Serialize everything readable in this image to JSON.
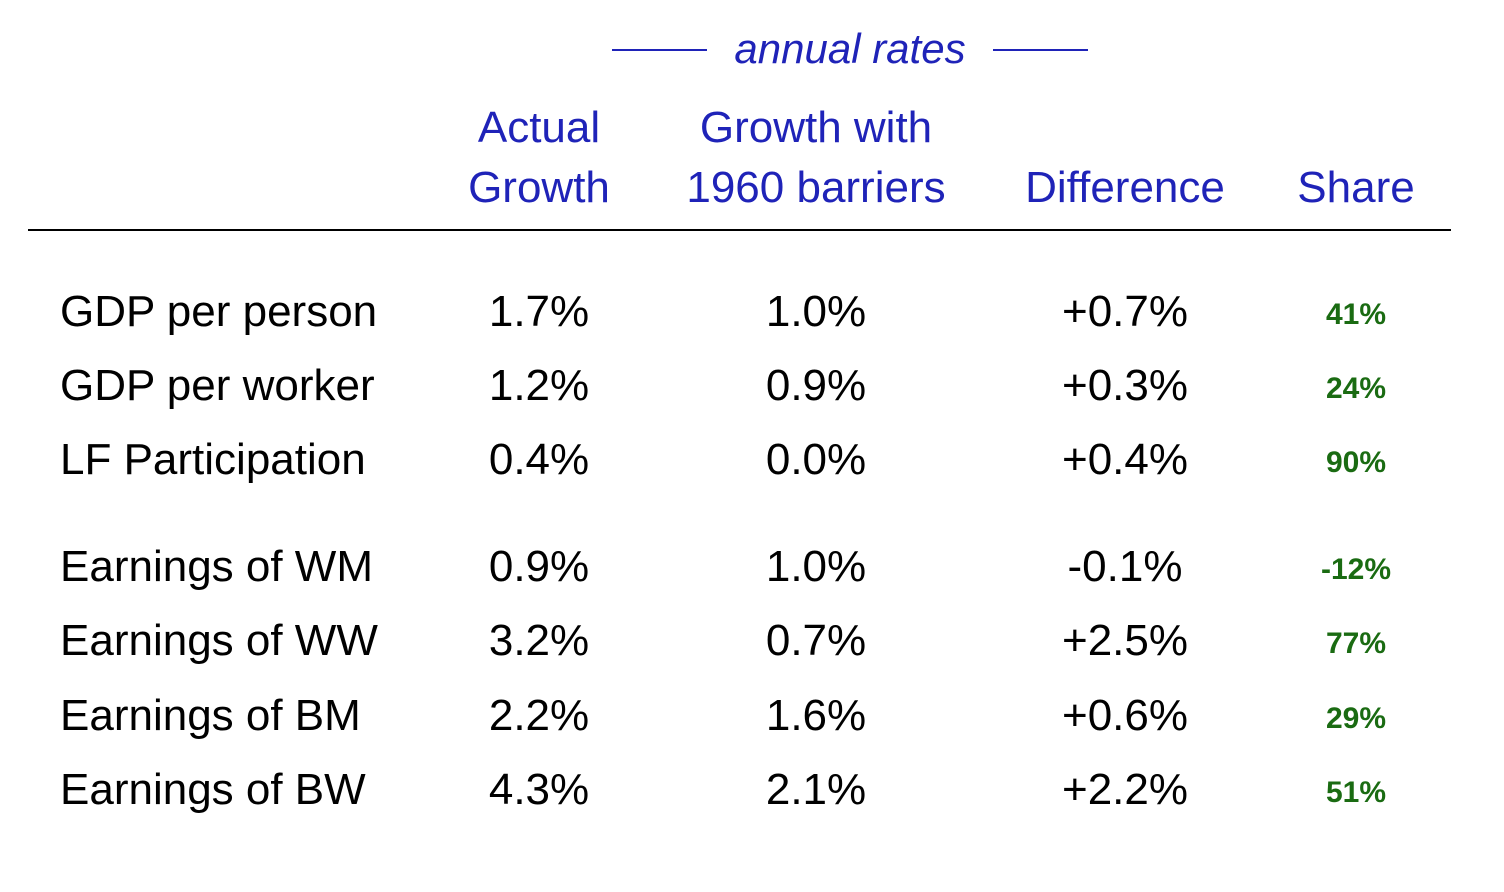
{
  "header": {
    "super_header": "annual rates",
    "columns": [
      {
        "line1": "Actual",
        "line2": "Growth"
      },
      {
        "line1": "Growth with",
        "line2": "1960 barriers"
      },
      {
        "line1": "",
        "line2": "Difference"
      },
      {
        "line1": "",
        "line2": "Share"
      }
    ]
  },
  "rows": [
    {
      "label": "GDP per person",
      "actual": "1.7%",
      "barriers": "1.0%",
      "difference": "+0.7%",
      "share": "41%"
    },
    {
      "label": "GDP per worker",
      "actual": "1.2%",
      "barriers": "0.9%",
      "difference": "+0.3%",
      "share": "24%"
    },
    {
      "label": "LF Participation",
      "actual": "0.4%",
      "barriers": "0.0%",
      "difference": "+0.4%",
      "share": "90%"
    },
    {
      "label": "Earnings of WM",
      "actual": "0.9%",
      "barriers": "1.0%",
      "difference": "-0.1%",
      "share": "-12%"
    },
    {
      "label": "Earnings of WW",
      "actual": "3.2%",
      "barriers": "0.7%",
      "difference": "+2.5%",
      "share": "77%"
    },
    {
      "label": "Earnings of BM",
      "actual": "2.2%",
      "barriers": "1.6%",
      "difference": "+0.6%",
      "share": "29%"
    },
    {
      "label": "Earnings of BW",
      "actual": "4.3%",
      "barriers": "2.1%",
      "difference": "+2.2%",
      "share": "51%"
    }
  ],
  "colors": {
    "header_text": "#1f23b8",
    "share_text": "#1a6b12",
    "body_text": "#000000",
    "rule": "#000000"
  }
}
